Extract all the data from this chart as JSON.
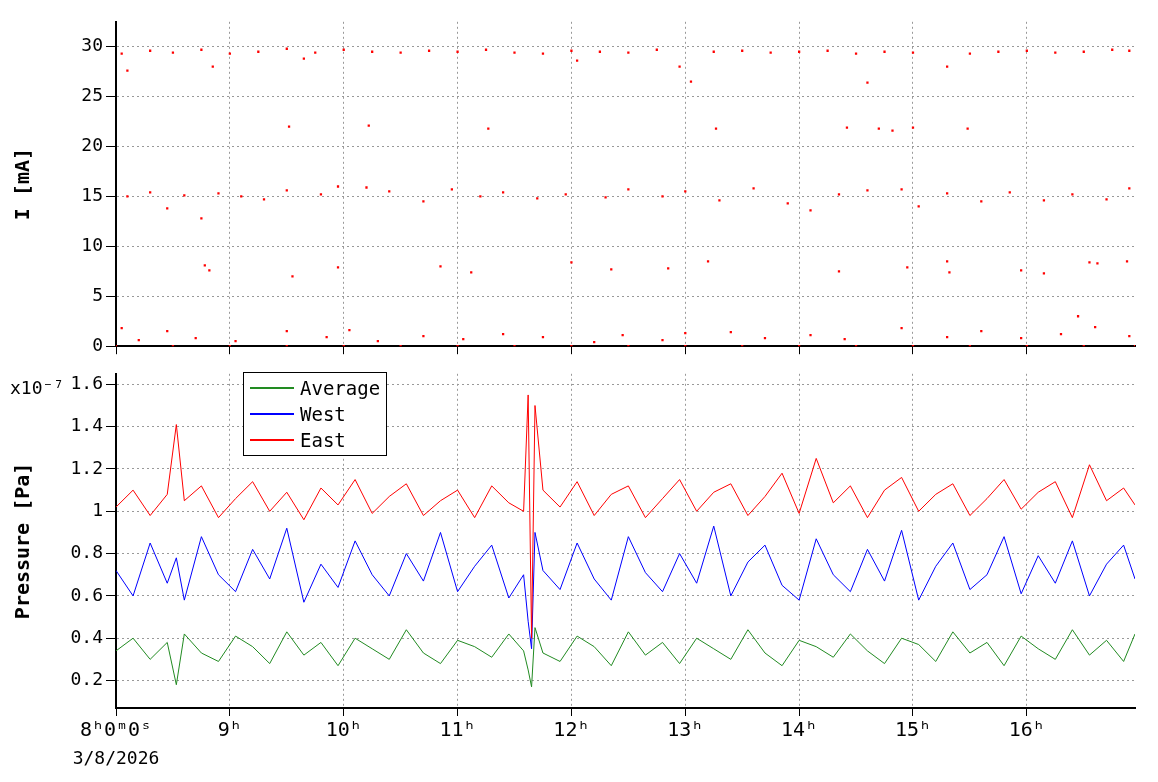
{
  "chart_data": [
    {
      "type": "scatter",
      "ylabel": "I [mA]",
      "marker": "square",
      "grid": true,
      "tick_labels": "y",
      "xlim": [
        8,
        16.95
      ],
      "xticks": [
        8,
        9,
        10,
        11,
        12,
        13,
        14,
        15,
        16
      ],
      "ylim": [
        0,
        32.5
      ],
      "yticks": [
        0,
        5,
        10,
        15,
        20,
        25,
        30
      ],
      "series": [
        {
          "color": "#ff0000",
          "x": [
            8.05,
            8.1,
            8.3,
            8.5,
            8.75,
            8.85,
            9.0,
            9.25,
            9.5,
            9.65,
            9.75,
            10.0,
            10.25,
            10.5,
            10.75,
            11.0,
            11.25,
            11.5,
            11.75,
            12.0,
            12.05,
            12.25,
            12.5,
            12.75,
            12.95,
            13.05,
            13.25,
            13.5,
            13.75,
            14.0,
            14.25,
            14.5,
            14.6,
            14.75,
            15.0,
            15.3,
            15.5,
            15.75,
            16.0,
            16.25,
            16.5,
            16.75,
            16.9,
            9.52,
            10.22,
            11.27,
            13.27,
            14.42,
            14.7,
            14.82,
            15.0,
            15.48,
            8.1,
            8.3,
            8.45,
            8.6,
            8.75,
            8.9,
            9.1,
            9.3,
            9.5,
            9.8,
            9.95,
            10.2,
            10.4,
            10.7,
            10.95,
            11.2,
            11.4,
            11.7,
            11.95,
            12.3,
            12.5,
            12.8,
            13.0,
            13.3,
            13.6,
            13.9,
            14.1,
            14.35,
            14.6,
            14.9,
            15.05,
            15.3,
            15.6,
            15.85,
            16.15,
            16.4,
            16.7,
            16.9,
            8.78,
            8.82,
            9.55,
            9.95,
            10.85,
            11.12,
            12.0,
            12.35,
            12.85,
            13.2,
            14.35,
            14.95,
            15.3,
            15.32,
            15.95,
            16.15,
            16.55,
            16.62,
            16.88,
            8.05,
            8.2,
            8.45,
            8.7,
            9.05,
            9.5,
            9.85,
            10.05,
            10.3,
            10.7,
            11.05,
            11.4,
            11.75,
            12.2,
            12.45,
            12.8,
            13.0,
            13.4,
            13.7,
            14.1,
            14.4,
            14.9,
            15.3,
            15.6,
            15.95,
            16.3,
            16.45,
            16.6,
            16.9,
            8.0,
            8.5,
            9.0,
            9.5,
            10.0,
            10.5,
            11.0,
            11.5,
            12.0,
            12.5,
            13.0,
            13.5,
            14.0,
            14.5,
            15.0,
            15.5,
            16.0,
            16.5,
            16.95
          ],
          "values": [
            29.3,
            27.6,
            29.6,
            29.4,
            29.7,
            28.0,
            29.3,
            29.5,
            29.8,
            28.8,
            29.4,
            29.7,
            29.5,
            29.4,
            29.6,
            29.5,
            29.7,
            29.4,
            29.3,
            29.6,
            28.6,
            29.5,
            29.4,
            29.7,
            28.0,
            26.5,
            29.5,
            29.6,
            29.4,
            29.5,
            29.6,
            29.3,
            26.4,
            29.5,
            29.4,
            28.0,
            29.3,
            29.5,
            29.6,
            29.4,
            29.5,
            29.7,
            29.6,
            22.0,
            22.1,
            21.8,
            21.8,
            21.9,
            21.8,
            21.6,
            21.9,
            21.8,
            15.0,
            15.4,
            13.8,
            15.1,
            12.8,
            15.3,
            15.0,
            14.7,
            15.6,
            15.2,
            16.0,
            15.9,
            15.5,
            14.5,
            15.7,
            15.0,
            15.4,
            14.8,
            15.2,
            14.9,
            15.7,
            15.0,
            15.5,
            14.6,
            15.8,
            14.3,
            13.6,
            15.2,
            15.6,
            15.7,
            14.0,
            15.3,
            14.5,
            15.4,
            14.6,
            15.2,
            14.7,
            15.8,
            8.1,
            7.6,
            7.0,
            7.9,
            8.0,
            7.4,
            8.4,
            7.7,
            7.8,
            8.5,
            7.5,
            7.9,
            8.5,
            7.4,
            7.6,
            7.3,
            8.4,
            8.3,
            8.5,
            1.8,
            0.6,
            1.5,
            0.8,
            0.5,
            1.5,
            0.9,
            1.6,
            0.5,
            1.0,
            0.7,
            1.2,
            0.9,
            0.4,
            1.1,
            0.6,
            1.3,
            1.4,
            0.8,
            1.1,
            0.7,
            1.8,
            0.9,
            1.5,
            0.8,
            1.2,
            3.0,
            1.9,
            1.0,
            0,
            0,
            0,
            0,
            0,
            0,
            0,
            0,
            0,
            0,
            0,
            0,
            0,
            0,
            0,
            0,
            0,
            0,
            0
          ]
        }
      ]
    },
    {
      "type": "line",
      "ylabel": "Pressure [Pa]",
      "grid": true,
      "legend": "top left",
      "annotations": [
        "x10⁻⁷",
        "3/8/2026"
      ],
      "xlim": [
        8,
        16.95
      ],
      "xticks": [
        {
          "value": 8,
          "label": "8ʰ0ᵐ0ˢ"
        },
        {
          "value": 9,
          "label": "9ʰ"
        },
        {
          "value": 10,
          "label": "10ʰ"
        },
        {
          "value": 11,
          "label": "11ʰ"
        },
        {
          "value": 12,
          "label": "12ʰ"
        },
        {
          "value": 13,
          "label": "13ʰ"
        },
        {
          "value": 14,
          "label": "14ʰ"
        },
        {
          "value": 15,
          "label": "15ʰ"
        },
        {
          "value": 16,
          "label": "16ʰ"
        }
      ],
      "ylim": [
        0.07,
        1.65
      ],
      "yticks": [
        0.2,
        0.4,
        0.6,
        0.8,
        1,
        1.2,
        1.4,
        1.6
      ],
      "x": [
        8.0,
        8.15,
        8.3,
        8.45,
        8.53,
        8.6,
        8.75,
        8.9,
        9.05,
        9.2,
        9.35,
        9.5,
        9.65,
        9.8,
        9.95,
        10.1,
        10.25,
        10.4,
        10.55,
        10.7,
        10.85,
        11.0,
        11.15,
        11.3,
        11.45,
        11.58,
        11.62,
        11.65,
        11.68,
        11.75,
        11.9,
        12.05,
        12.2,
        12.35,
        12.5,
        12.65,
        12.8,
        12.95,
        13.1,
        13.25,
        13.4,
        13.55,
        13.7,
        13.85,
        14.0,
        14.15,
        14.3,
        14.45,
        14.6,
        14.75,
        14.9,
        15.05,
        15.2,
        15.35,
        15.5,
        15.65,
        15.8,
        15.95,
        16.1,
        16.25,
        16.4,
        16.55,
        16.7,
        16.85,
        16.95
      ],
      "series": [
        {
          "name": "Average",
          "color": "#228b22",
          "values": [
            0.34,
            0.4,
            0.3,
            0.38,
            0.18,
            0.42,
            0.33,
            0.29,
            0.41,
            0.36,
            0.28,
            0.43,
            0.32,
            0.38,
            0.27,
            0.4,
            0.35,
            0.3,
            0.44,
            0.33,
            0.28,
            0.39,
            0.36,
            0.31,
            0.42,
            0.34,
            0.25,
            0.17,
            0.45,
            0.33,
            0.29,
            0.41,
            0.36,
            0.27,
            0.43,
            0.32,
            0.38,
            0.28,
            0.4,
            0.35,
            0.3,
            0.44,
            0.33,
            0.27,
            0.39,
            0.36,
            0.31,
            0.42,
            0.34,
            0.28,
            0.4,
            0.37,
            0.29,
            0.43,
            0.33,
            0.38,
            0.27,
            0.41,
            0.35,
            0.3,
            0.44,
            0.32,
            0.39,
            0.29,
            0.42
          ]
        },
        {
          "name": "West",
          "color": "#0000ff",
          "values": [
            0.72,
            0.6,
            0.85,
            0.66,
            0.78,
            0.58,
            0.88,
            0.7,
            0.62,
            0.82,
            0.68,
            0.92,
            0.57,
            0.75,
            0.64,
            0.86,
            0.7,
            0.6,
            0.8,
            0.67,
            0.9,
            0.62,
            0.74,
            0.84,
            0.59,
            0.7,
            0.48,
            0.35,
            0.9,
            0.72,
            0.63,
            0.85,
            0.68,
            0.58,
            0.88,
            0.71,
            0.62,
            0.8,
            0.66,
            0.93,
            0.6,
            0.76,
            0.84,
            0.65,
            0.58,
            0.87,
            0.7,
            0.62,
            0.82,
            0.67,
            0.91,
            0.58,
            0.74,
            0.85,
            0.63,
            0.7,
            0.88,
            0.61,
            0.79,
            0.66,
            0.86,
            0.6,
            0.75,
            0.84,
            0.68
          ]
        },
        {
          "name": "East",
          "color": "#ff0000",
          "values": [
            1.02,
            1.1,
            0.98,
            1.08,
            1.41,
            1.05,
            1.12,
            0.97,
            1.06,
            1.14,
            1.0,
            1.09,
            0.96,
            1.11,
            1.03,
            1.15,
            0.99,
            1.07,
            1.13,
            0.98,
            1.05,
            1.1,
            0.97,
            1.12,
            1.04,
            1.0,
            1.55,
            0.4,
            1.5,
            1.1,
            1.02,
            1.14,
            0.98,
            1.08,
            1.12,
            0.97,
            1.06,
            1.15,
            1.0,
            1.09,
            1.13,
            0.98,
            1.07,
            1.18,
            0.99,
            1.25,
            1.04,
            1.12,
            0.97,
            1.1,
            1.16,
            1.0,
            1.08,
            1.13,
            0.98,
            1.06,
            1.15,
            1.01,
            1.09,
            1.14,
            0.97,
            1.22,
            1.05,
            1.11,
            1.03
          ]
        }
      ]
    }
  ]
}
